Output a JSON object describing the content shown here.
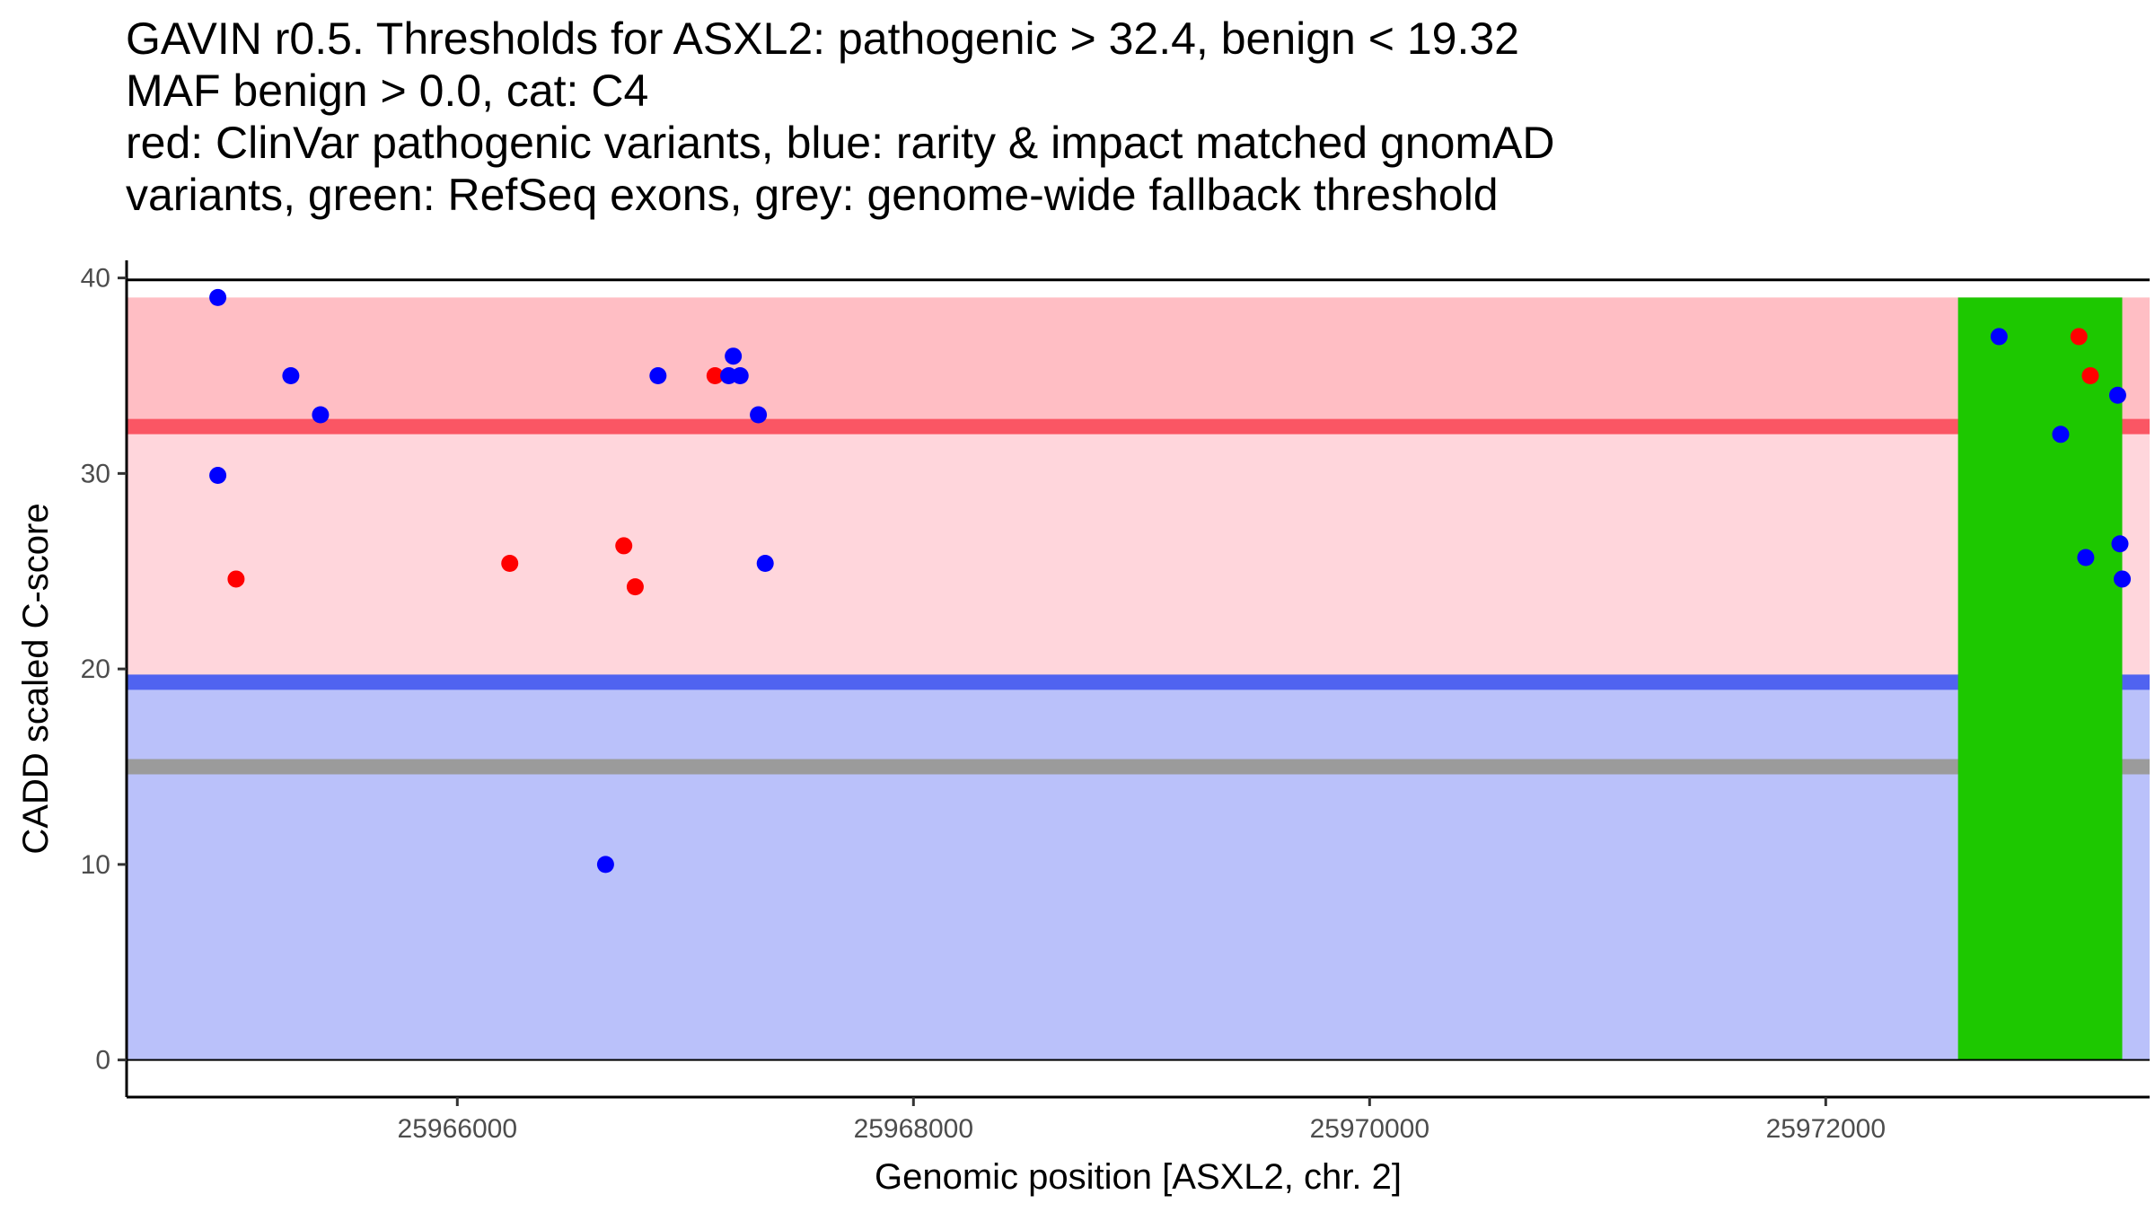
{
  "chart_data": {
    "type": "scatter",
    "title_lines": [
      "GAVIN r0.5. Thresholds for ASXL2: pathogenic > 32.4, benign < 19.32",
      "MAF benign > 0.0, cat: C4",
      "red: ClinVar pathogenic variants, blue: rarity & impact matched gnomAD",
      "variants, green: RefSeq exons, grey: genome-wide fallback threshold"
    ],
    "xlabel": "Genomic position [ASXL2, chr. 2]",
    "ylabel": "CADD scaled C-score",
    "xlim": [
      25964550,
      25973420
    ],
    "ylim": [
      -1.9,
      40.9
    ],
    "x_ticks": [
      25966000,
      25968000,
      25970000,
      25972000
    ],
    "x_tick_labels": [
      "25966000",
      "25968000",
      "25970000",
      "25972000"
    ],
    "y_ticks": [
      0,
      10,
      20,
      30,
      40
    ],
    "y_tick_labels": [
      "0",
      "10",
      "20",
      "30",
      "40"
    ],
    "thresholds": {
      "pathogenic": 32.4,
      "benign": 19.32,
      "fallback": 15,
      "max_score": 39
    },
    "exon_regions": [
      [
        25972580,
        25973300
      ]
    ],
    "series": [
      {
        "name": "ClinVar pathogenic variants",
        "color": "#ff0000",
        "points": [
          {
            "x": 25965030,
            "y": 24.6
          },
          {
            "x": 25966230,
            "y": 25.4
          },
          {
            "x": 25966730,
            "y": 26.3
          },
          {
            "x": 25966780,
            "y": 24.2
          },
          {
            "x": 25967130,
            "y": 35.0
          },
          {
            "x": 25973110,
            "y": 37.0
          },
          {
            "x": 25973160,
            "y": 35.0
          }
        ]
      },
      {
        "name": "rarity & impact matched gnomAD variants",
        "color": "#0000ff",
        "points": [
          {
            "x": 25964950,
            "y": 39.0
          },
          {
            "x": 25964950,
            "y": 29.9
          },
          {
            "x": 25965270,
            "y": 35.0
          },
          {
            "x": 25965400,
            "y": 33.0
          },
          {
            "x": 25966650,
            "y": 10.0
          },
          {
            "x": 25966880,
            "y": 35.0
          },
          {
            "x": 25967190,
            "y": 35.0
          },
          {
            "x": 25967210,
            "y": 36.0
          },
          {
            "x": 25967240,
            "y": 35.0
          },
          {
            "x": 25967320,
            "y": 33.0
          },
          {
            "x": 25967350,
            "y": 25.4
          },
          {
            "x": 25972760,
            "y": 37.0
          },
          {
            "x": 25973030,
            "y": 32.0
          },
          {
            "x": 25973140,
            "y": 25.7
          },
          {
            "x": 25973280,
            "y": 34.0
          },
          {
            "x": 25973290,
            "y": 26.4
          },
          {
            "x": 25973300,
            "y": 24.6
          }
        ]
      }
    ],
    "colors": {
      "pathogenic_zone": "#ffd6dc",
      "pathogenic_top_zone": "#ffbec4",
      "benign_zone": "#bac1fa",
      "pathogenic_line": "#fa5664",
      "benign_line": "#5063f0",
      "fallback_line": "#9b9b9b",
      "exon": "#1dc800"
    }
  }
}
